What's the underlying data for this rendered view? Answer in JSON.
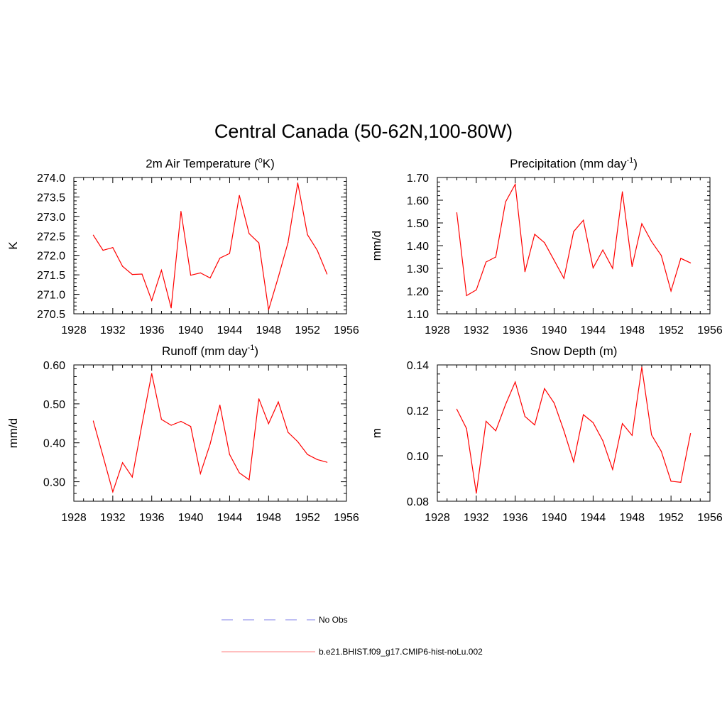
{
  "title": "Central Canada (50-62N,100-80W)",
  "colors": {
    "series": "#ff0000",
    "obs": "#9999ee",
    "axis": "#000000"
  },
  "legend": [
    {
      "label": "No Obs",
      "style": "dashed",
      "color": "#9999ee"
    },
    {
      "label": "b.e21.BHIST.f09_g17.CMIP6-hist-noLu.002",
      "style": "solid",
      "color": "#ff9999"
    }
  ],
  "chart_data": [
    {
      "type": "line",
      "title": "2m Air Temperature (",
      "title_sup": "o",
      "title_after": "K)",
      "ylabel": "K",
      "xlim": [
        1928,
        1956
      ],
      "ylim": [
        270.5,
        274.0
      ],
      "xticks": [
        1928,
        1932,
        1936,
        1940,
        1944,
        1948,
        1952,
        1956
      ],
      "yticks": [
        "270.5",
        "271.0",
        "271.5",
        "272.0",
        "272.5",
        "273.0",
        "273.5",
        "274.0"
      ],
      "x": [
        1930,
        1931,
        1932,
        1933,
        1934,
        1935,
        1936,
        1937,
        1938,
        1939,
        1940,
        1941,
        1942,
        1943,
        1944,
        1945,
        1946,
        1947,
        1948,
        1949,
        1950,
        1951,
        1952,
        1953,
        1954
      ],
      "values": [
        272.52,
        272.13,
        272.2,
        271.72,
        271.51,
        271.52,
        270.84,
        271.62,
        270.65,
        273.13,
        271.49,
        271.55,
        271.42,
        271.93,
        272.05,
        273.54,
        272.56,
        272.32,
        270.6,
        271.44,
        272.33,
        273.86,
        272.53,
        272.13,
        271.52
      ]
    },
    {
      "type": "line",
      "title": "Precipitation (mm day",
      "title_sup": "-1",
      "title_after": ")",
      "ylabel": "mm/d",
      "xlim": [
        1928,
        1956
      ],
      "ylim": [
        1.1,
        1.7
      ],
      "xticks": [
        1928,
        1932,
        1936,
        1940,
        1944,
        1948,
        1952,
        1956
      ],
      "yticks": [
        "1.10",
        "1.20",
        "1.30",
        "1.40",
        "1.50",
        "1.60",
        "1.70"
      ],
      "x": [
        1930,
        1931,
        1932,
        1933,
        1934,
        1935,
        1936,
        1937,
        1938,
        1939,
        1940,
        1941,
        1942,
        1943,
        1944,
        1945,
        1946,
        1947,
        1948,
        1949,
        1950,
        1951,
        1952,
        1953,
        1954
      ],
      "values": [
        1.545,
        1.18,
        1.205,
        1.328,
        1.35,
        1.592,
        1.67,
        1.285,
        1.45,
        1.413,
        1.335,
        1.256,
        1.462,
        1.512,
        1.302,
        1.381,
        1.3,
        1.637,
        1.308,
        1.497,
        1.418,
        1.357,
        1.2,
        1.344,
        1.324
      ]
    },
    {
      "type": "line",
      "title": "Runoff (mm day",
      "title_sup": "-1",
      "title_after": ")",
      "ylabel": "mm/d",
      "xlim": [
        1928,
        1956
      ],
      "ylim": [
        0.25,
        0.6
      ],
      "xticks": [
        1928,
        1932,
        1936,
        1940,
        1944,
        1948,
        1952,
        1956
      ],
      "yticks": [
        "0.30",
        "0.40",
        "0.50",
        "0.60"
      ],
      "ytick_values": [
        0.3,
        0.4,
        0.5,
        0.6
      ],
      "x": [
        1930,
        1931,
        1932,
        1933,
        1934,
        1935,
        1936,
        1937,
        1938,
        1939,
        1940,
        1941,
        1942,
        1943,
        1944,
        1945,
        1946,
        1947,
        1948,
        1949,
        1950,
        1951,
        1952,
        1953,
        1954
      ],
      "values": [
        0.456,
        0.366,
        0.274,
        0.349,
        0.312,
        0.447,
        0.578,
        0.46,
        0.445,
        0.455,
        0.442,
        0.321,
        0.397,
        0.497,
        0.37,
        0.323,
        0.305,
        0.513,
        0.449,
        0.505,
        0.427,
        0.403,
        0.37,
        0.357,
        0.35
      ]
    },
    {
      "type": "line",
      "title": "Snow Depth (m)",
      "title_sup": "",
      "title_after": "",
      "ylabel": "m",
      "xlim": [
        1928,
        1956
      ],
      "ylim": [
        0.08,
        0.14
      ],
      "xticks": [
        1928,
        1932,
        1936,
        1940,
        1944,
        1948,
        1952,
        1956
      ],
      "yticks": [
        "0.08",
        "0.10",
        "0.12",
        "0.14"
      ],
      "x": [
        1930,
        1931,
        1932,
        1933,
        1934,
        1935,
        1936,
        1937,
        1938,
        1939,
        1940,
        1941,
        1942,
        1943,
        1944,
        1945,
        1946,
        1947,
        1948,
        1949,
        1950,
        1951,
        1952,
        1953,
        1954
      ],
      "values": [
        0.1205,
        0.112,
        0.0835,
        0.1152,
        0.111,
        0.1225,
        0.1325,
        0.1173,
        0.1136,
        0.1296,
        0.1232,
        0.111,
        0.0973,
        0.1181,
        0.1146,
        0.1066,
        0.094,
        0.1142,
        0.109,
        0.139,
        0.1092,
        0.102,
        0.0888,
        0.0883,
        0.1098
      ]
    }
  ]
}
